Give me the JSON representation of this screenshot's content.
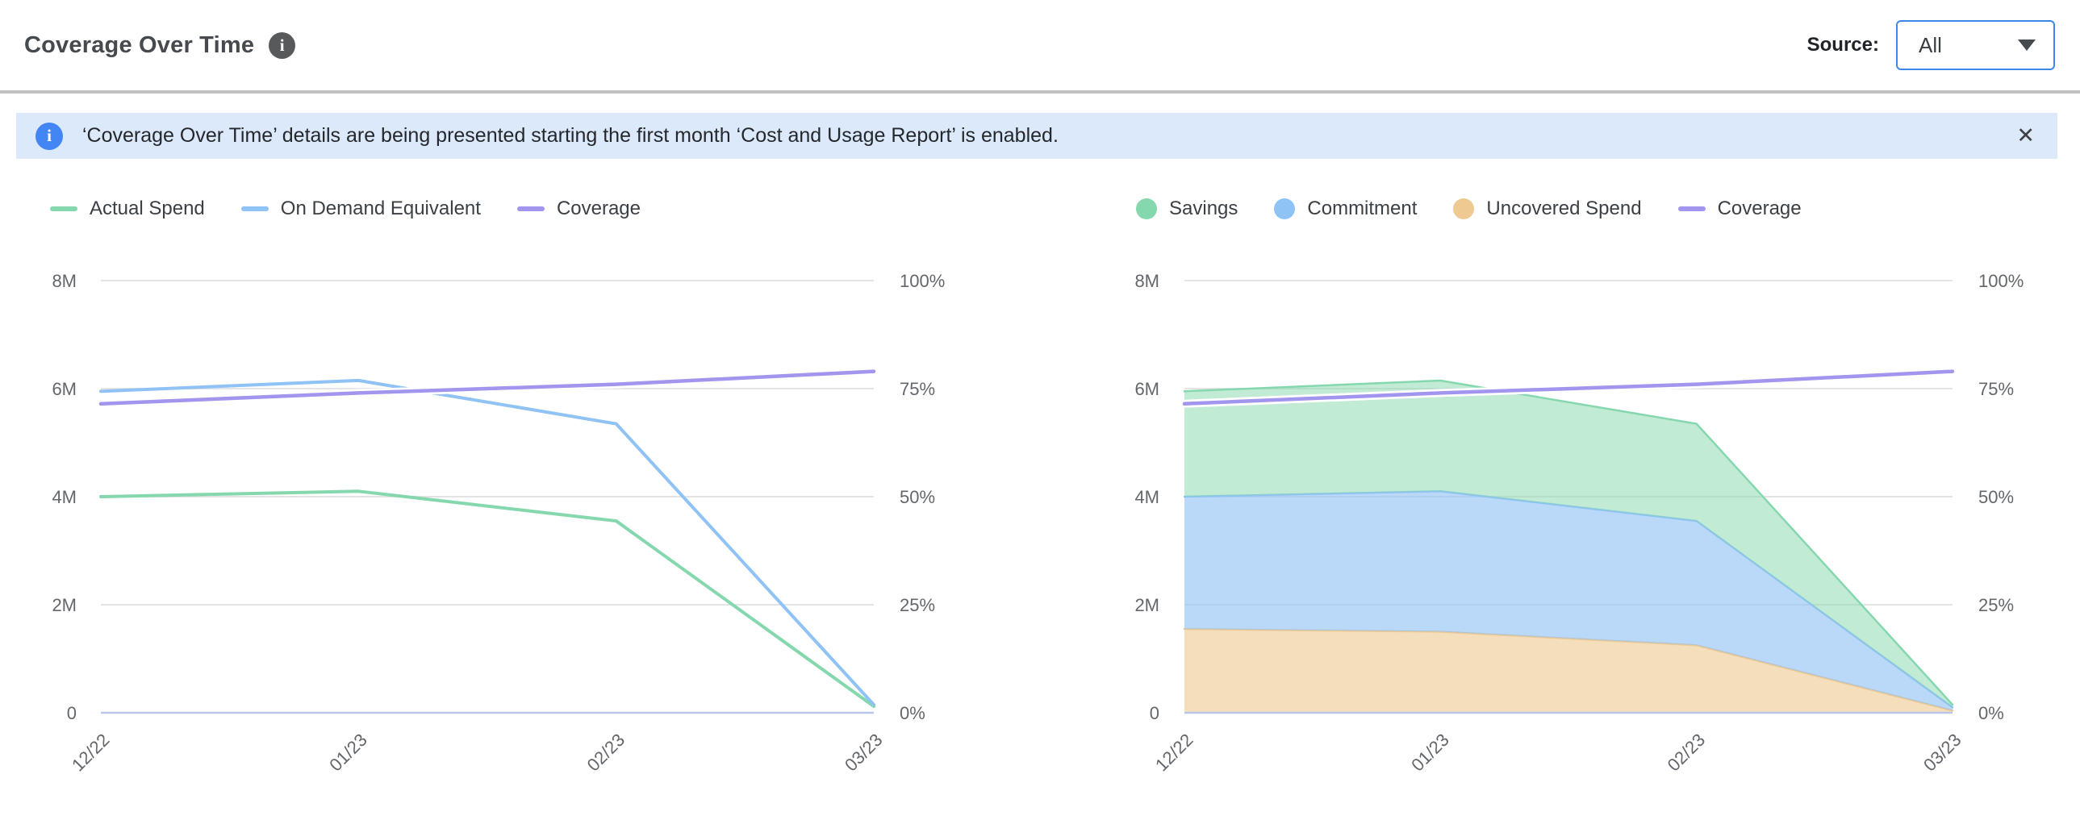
{
  "header": {
    "title": "Coverage Over Time",
    "info_glyph": "i",
    "source_label": "Source:",
    "source_value": "All"
  },
  "banner": {
    "info_glyph": "i",
    "text": "‘Coverage Over Time’ details are being presented starting the first month ‘Cost and Usage Report’ is enabled.",
    "close_glyph": "✕"
  },
  "colors": {
    "green": "#85d8ae",
    "blue": "#8fc2f5",
    "purple": "#a195ee",
    "orange": "#eeca92",
    "fill_green": "rgba(133,216,174,0.50)",
    "fill_blue": "rgba(143,194,245,0.62)",
    "fill_orange": "rgba(238,202,146,0.62)",
    "grid": "#e4e4e4",
    "baseline": "#b9c6ea",
    "axis_text": "#63676b",
    "banner_bg": "#dce9fb",
    "banner_icon": "#4285f4",
    "accent_border": "#3d86ea"
  },
  "chart_data": [
    {
      "name": "spend-vs-on-demand",
      "type": "line",
      "x": [
        "12/22",
        "01/23",
        "02/23",
        "03/23"
      ],
      "y_left": {
        "label_ticks": [
          "0",
          "2M",
          "4M",
          "6M",
          "8M"
        ],
        "min": 0,
        "max_M": 8
      },
      "y_right": {
        "label_ticks": [
          "0%",
          "25%",
          "50%",
          "75%",
          "100%"
        ],
        "min": 0,
        "max_pct": 100
      },
      "grid": true,
      "legend_position": "top-left",
      "series": [
        {
          "name": "Actual Spend",
          "color": "green",
          "axis": "left",
          "swatch": "line",
          "values_M": [
            4.0,
            4.1,
            3.55,
            0.12
          ]
        },
        {
          "name": "On Demand Equivalent",
          "color": "blue",
          "axis": "left",
          "swatch": "line",
          "values_M": [
            5.95,
            6.15,
            5.35,
            0.15
          ]
        },
        {
          "name": "Coverage",
          "color": "purple",
          "axis": "right",
          "swatch": "line",
          "values_pct": [
            71.5,
            74,
            76,
            79
          ]
        }
      ]
    },
    {
      "name": "savings-breakdown",
      "type": "area-stacked",
      "x": [
        "12/22",
        "01/23",
        "02/23",
        "03/23"
      ],
      "y_left": {
        "label_ticks": [
          "0",
          "2M",
          "4M",
          "6M",
          "8M"
        ],
        "min": 0,
        "max_M": 8
      },
      "y_right": {
        "label_ticks": [
          "0%",
          "25%",
          "50%",
          "75%",
          "100%"
        ],
        "min": 0,
        "max_pct": 100
      },
      "grid": true,
      "legend_position": "top-left",
      "stack_bottom_to_top": [
        "Uncovered Spend",
        "Commitment",
        "Savings"
      ],
      "series": [
        {
          "name": "Savings",
          "color": "green",
          "axis": "left",
          "swatch": "dot",
          "stack": true,
          "values_M": [
            1.95,
            2.05,
            1.8,
            0.05
          ]
        },
        {
          "name": "Commitment",
          "color": "blue",
          "axis": "left",
          "swatch": "dot",
          "stack": true,
          "values_M": [
            2.45,
            2.6,
            2.3,
            0.06
          ]
        },
        {
          "name": "Uncovered Spend",
          "color": "orange",
          "axis": "left",
          "swatch": "dot",
          "stack": true,
          "values_M": [
            1.55,
            1.5,
            1.25,
            0.04
          ]
        },
        {
          "name": "Coverage",
          "color": "purple",
          "axis": "right",
          "swatch": "line",
          "values_pct": [
            71.5,
            74,
            76,
            79
          ]
        }
      ]
    }
  ]
}
